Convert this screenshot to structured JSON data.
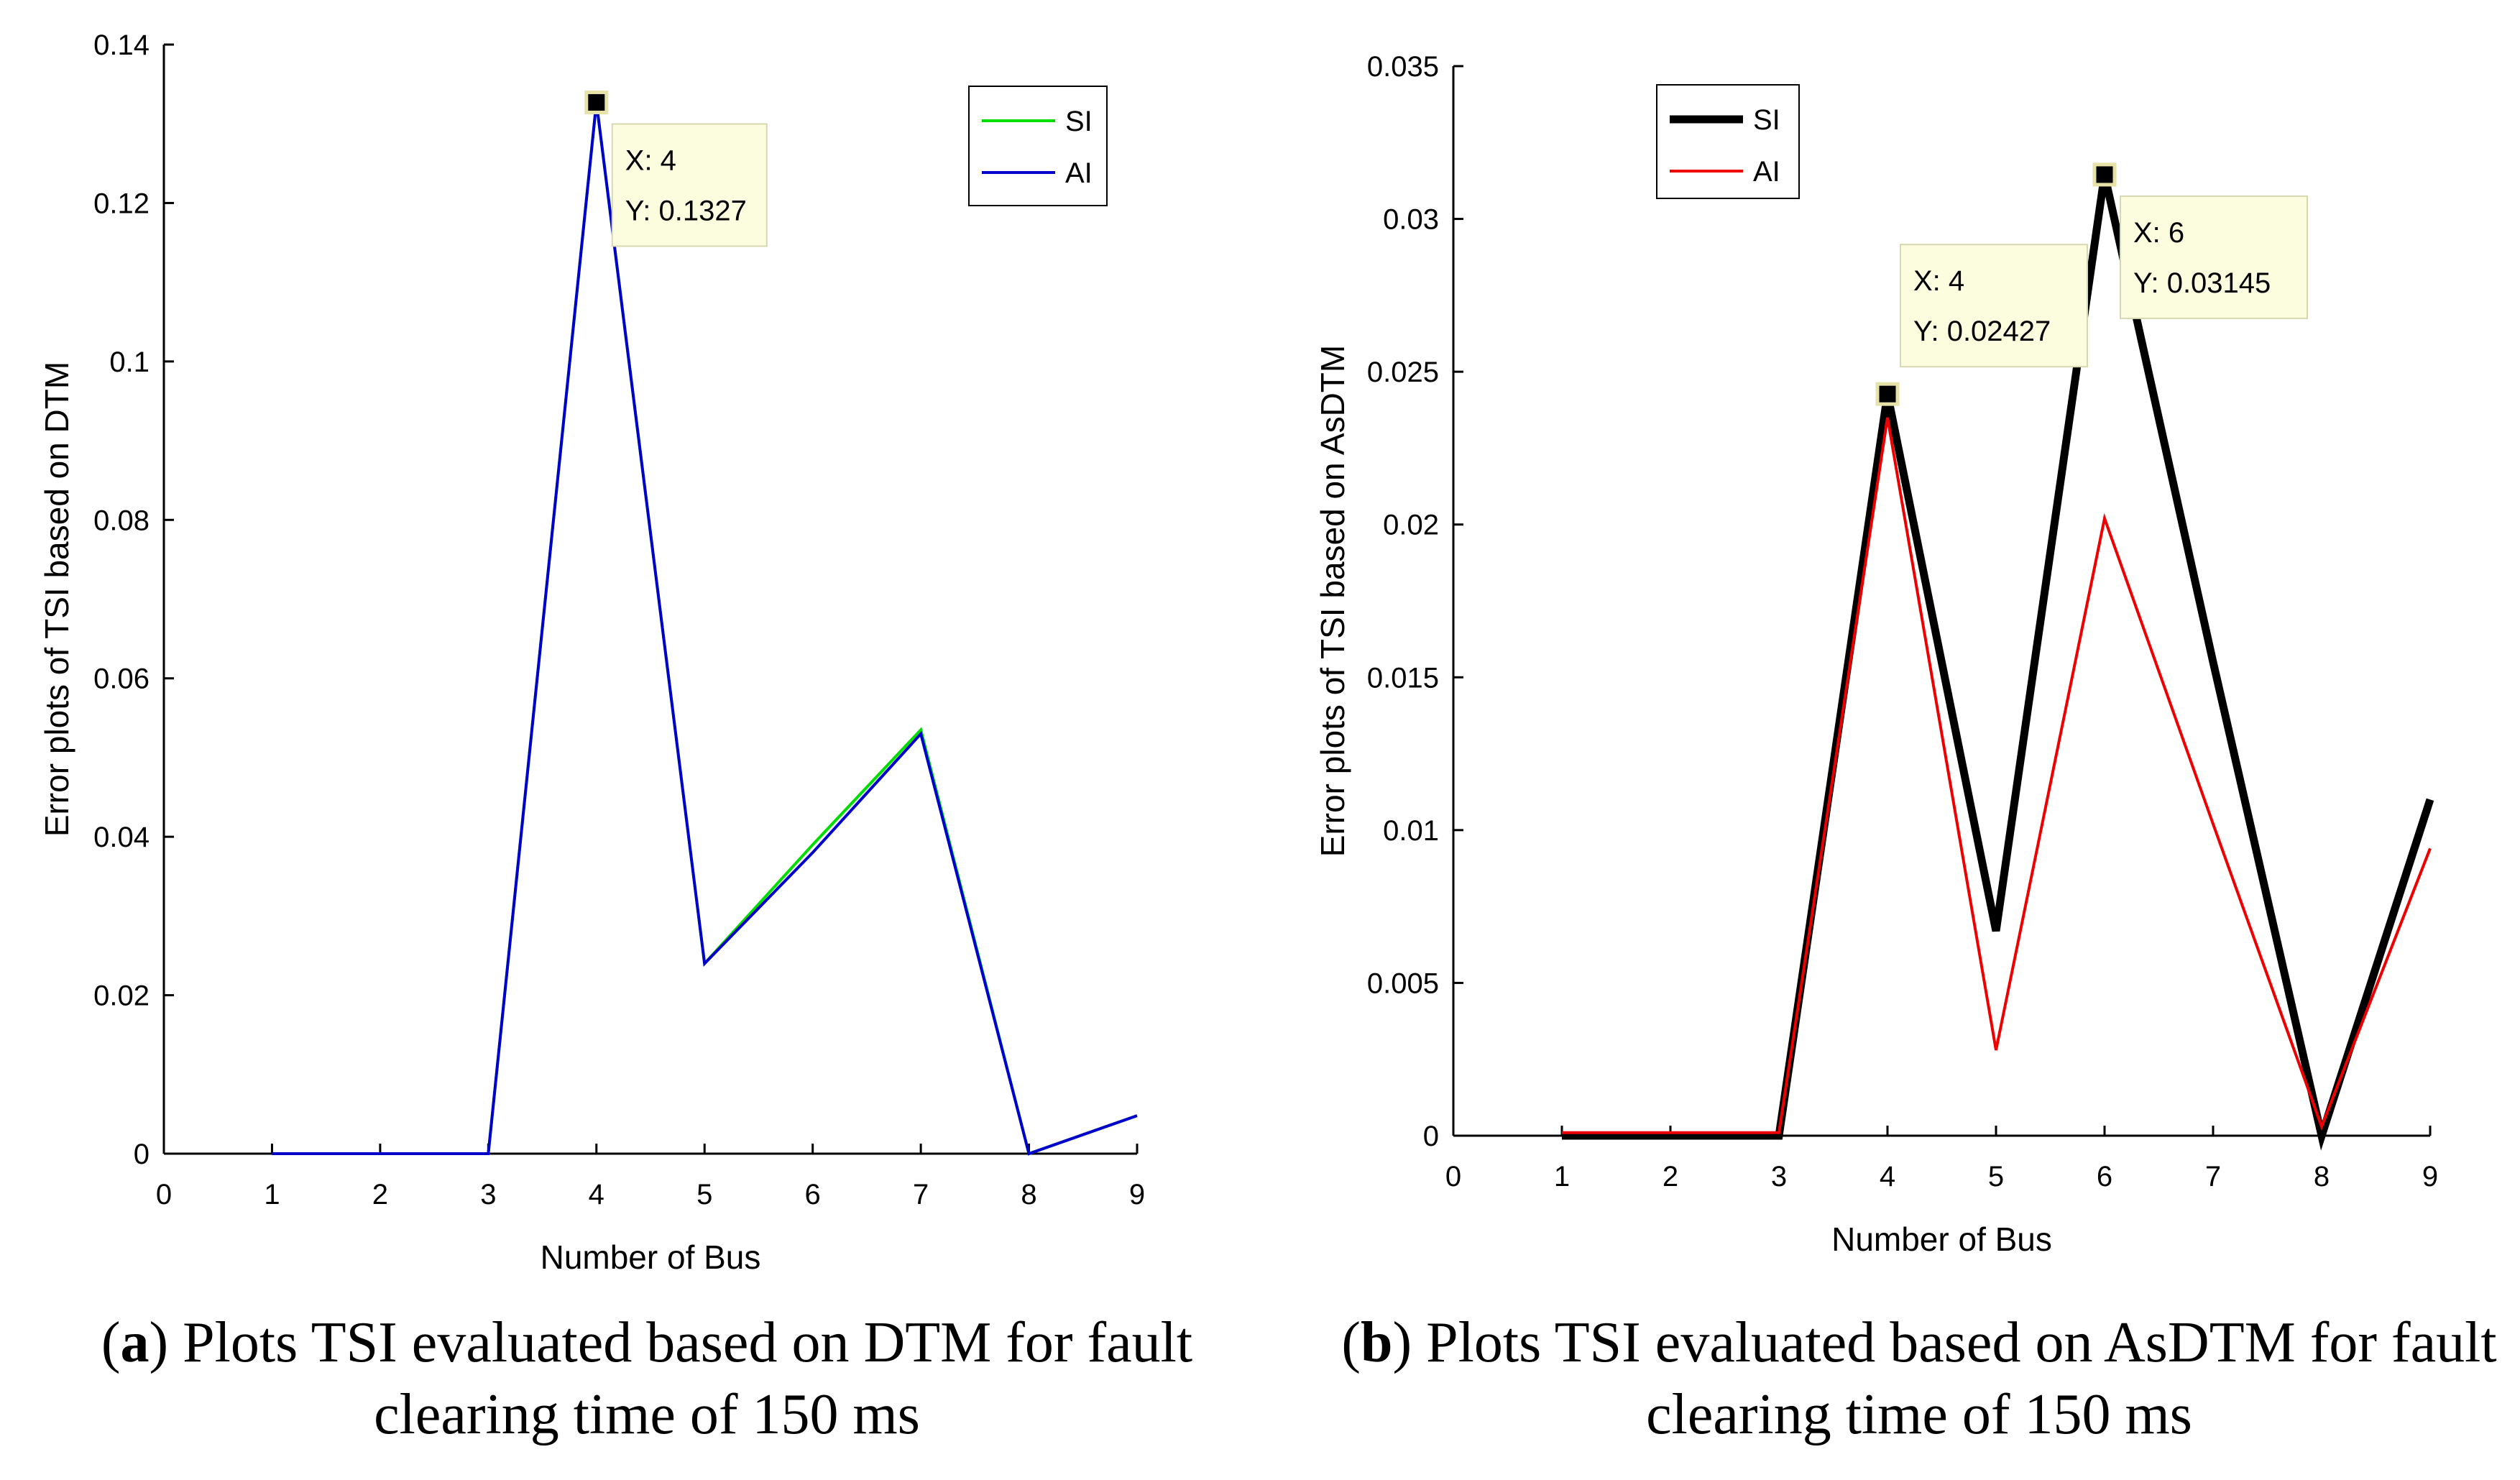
{
  "chart_data": [
    {
      "type": "line",
      "panel_letter": "a",
      "caption": "Plots TSI evaluated based on DTM for fault clearing time of 150 ms",
      "xlabel": "Number of Bus",
      "ylabel": "Error plots of TSI based on DTM",
      "xlim": [
        0,
        9
      ],
      "ylim": [
        0,
        0.14
      ],
      "xticks": [
        0,
        1,
        2,
        3,
        4,
        5,
        6,
        7,
        8,
        9
      ],
      "xtick_labels": [
        "0",
        "1",
        "2",
        "3",
        "4",
        "5",
        "6",
        "7",
        "8",
        "9"
      ],
      "yticks": [
        0,
        0.02,
        0.04,
        0.06,
        0.08,
        0.1,
        0.12,
        0.14
      ],
      "ytick_labels": [
        "0",
        "0.02",
        "0.04",
        "0.06",
        "0.08",
        "0.1",
        "0.12",
        "0.14"
      ],
      "x": [
        1,
        2,
        3,
        4,
        5,
        6,
        7,
        8,
        9
      ],
      "series": [
        {
          "name": "SI",
          "color": "#00dd00",
          "width": "thin",
          "values": [
            0,
            0,
            0,
            0.1327,
            0.024,
            0.039,
            0.0535,
            0,
            0.0048
          ]
        },
        {
          "name": "AI",
          "color": "#0000cc",
          "width": "thin",
          "values": [
            0,
            0,
            0,
            0.1327,
            0.024,
            0.038,
            0.053,
            0,
            0.0048
          ]
        }
      ],
      "legend": {
        "position": "top-right"
      },
      "datatips": [
        {
          "x": 4,
          "y": 0.1327,
          "line1": "X: 4",
          "line2": "Y: 0.1327",
          "side": "right"
        }
      ]
    },
    {
      "type": "line",
      "panel_letter": "b",
      "caption": "Plots TSI evaluated based on AsDTM for fault clearing time of 150 ms",
      "xlabel": "Number of Bus",
      "ylabel": "Error plots of TSI based on AsDTM",
      "xlim": [
        0,
        9
      ],
      "ylim": [
        0,
        0.035
      ],
      "xticks": [
        0,
        1,
        2,
        3,
        4,
        5,
        6,
        7,
        8,
        9
      ],
      "xtick_labels": [
        "0",
        "1",
        "2",
        "3",
        "4",
        "5",
        "6",
        "7",
        "8",
        "9"
      ],
      "yticks": [
        0,
        0.005,
        0.01,
        0.015,
        0.02,
        0.025,
        0.03,
        0.035
      ],
      "ytick_labels": [
        "0",
        "0.005",
        "0.01",
        "0.015",
        "0.02",
        "0.025",
        "0.03",
        "0.035"
      ],
      "x": [
        1,
        2,
        3,
        4,
        5,
        6,
        7,
        8,
        9
      ],
      "series": [
        {
          "name": "SI",
          "color": "#000000",
          "width": "thick",
          "values": [
            0,
            0,
            0,
            0.02427,
            0.0067,
            0.03145,
            0.0155,
            0,
            0.011
          ]
        },
        {
          "name": "AI",
          "color": "#ee0000",
          "width": "thin",
          "values": [
            0.0001,
            0.0001,
            0.0001,
            0.0235,
            0.0028,
            0.0202,
            0.0102,
            0.0003,
            0.0094
          ]
        }
      ],
      "legend": {
        "position": "top-left"
      },
      "datatips": [
        {
          "x": 4,
          "y": 0.02427,
          "line1": "X: 4",
          "line2": "Y: 0.02427",
          "side": "above"
        },
        {
          "x": 6,
          "y": 0.03145,
          "line1": "X: 6",
          "line2": "Y: 0.03145",
          "side": "right"
        }
      ]
    }
  ]
}
